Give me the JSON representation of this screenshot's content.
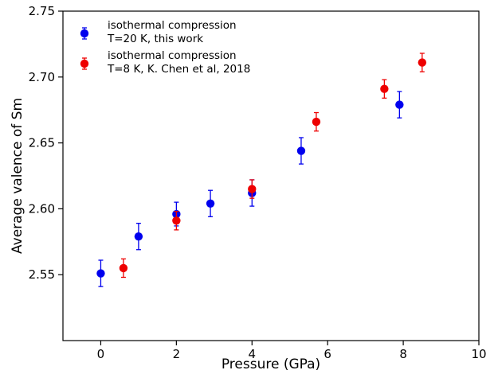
{
  "chart_data": {
    "type": "scatter",
    "xlabel": "Pressure (GPa)",
    "ylabel": "Average valence of Sm",
    "xlim": [
      -1,
      10
    ],
    "ylim": [
      2.5,
      2.75
    ],
    "x_ticks": [
      0,
      2,
      4,
      6,
      8,
      10
    ],
    "y_ticks": [
      2.55,
      2.6,
      2.65,
      2.7,
      2.75
    ],
    "x_tick_labels": [
      "0",
      "2",
      "4",
      "6",
      "8",
      "10"
    ],
    "y_tick_labels": [
      "2.55",
      "2.60",
      "2.65",
      "2.70",
      "2.75"
    ],
    "grid": false,
    "legend_position": "top-left",
    "series": [
      {
        "name_line1": "isothermal compression",
        "name_line2": " T=20 K, this work",
        "color": "#0000ee",
        "points": [
          {
            "x": 0.0,
            "y": 2.551,
            "err": 0.01
          },
          {
            "x": 1.0,
            "y": 2.579,
            "err": 0.01
          },
          {
            "x": 2.0,
            "y": 2.596,
            "err": 0.009
          },
          {
            "x": 2.9,
            "y": 2.604,
            "err": 0.01
          },
          {
            "x": 4.0,
            "y": 2.612,
            "err": 0.01
          },
          {
            "x": 5.3,
            "y": 2.644,
            "err": 0.01
          },
          {
            "x": 7.9,
            "y": 2.679,
            "err": 0.01
          }
        ]
      },
      {
        "name_line1": "isothermal compression",
        "name_line2": " T=8 K, K. Chen et al, 2018",
        "color": "#ee0000",
        "points": [
          {
            "x": 0.6,
            "y": 2.555,
            "err": 0.007
          },
          {
            "x": 2.0,
            "y": 2.591,
            "err": 0.007
          },
          {
            "x": 4.0,
            "y": 2.615,
            "err": 0.007
          },
          {
            "x": 5.7,
            "y": 2.666,
            "err": 0.007
          },
          {
            "x": 7.5,
            "y": 2.691,
            "err": 0.007
          },
          {
            "x": 8.5,
            "y": 2.711,
            "err": 0.007
          }
        ]
      }
    ]
  }
}
